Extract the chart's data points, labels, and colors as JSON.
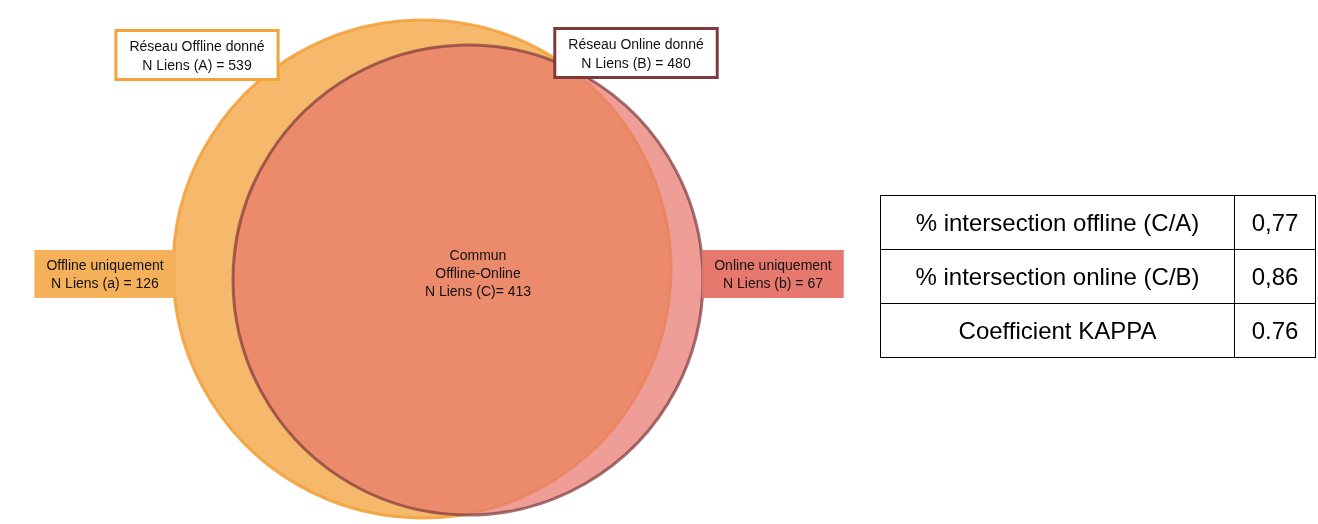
{
  "chart_data": [
    {
      "type": "other",
      "annotations": [
        "Réseau Offline donné\nN Liens (A) = 539",
        "Réseau Online donné\nN Liens (B) = 480"
      ],
      "categories": [
        "Offline uniquement",
        "Commun\nOffline-Online",
        "Online uniquement"
      ],
      "values": [
        126,
        413,
        67
      ],
      "value_labels": [
        "N Liens (a) = 126",
        "N Liens (C)= 413",
        "N Liens (b) = 67"
      ],
      "colors": [
        "#f5b05a",
        null,
        "#e7786e"
      ]
    },
    {
      "type": "other",
      "categories": [
        "% intersection offline (C/A)",
        "% intersection online (C/B)",
        "Coefficient KAPPA"
      ],
      "value_labels": [
        "0,77",
        "0,86",
        "0.76"
      ]
    }
  ]
}
